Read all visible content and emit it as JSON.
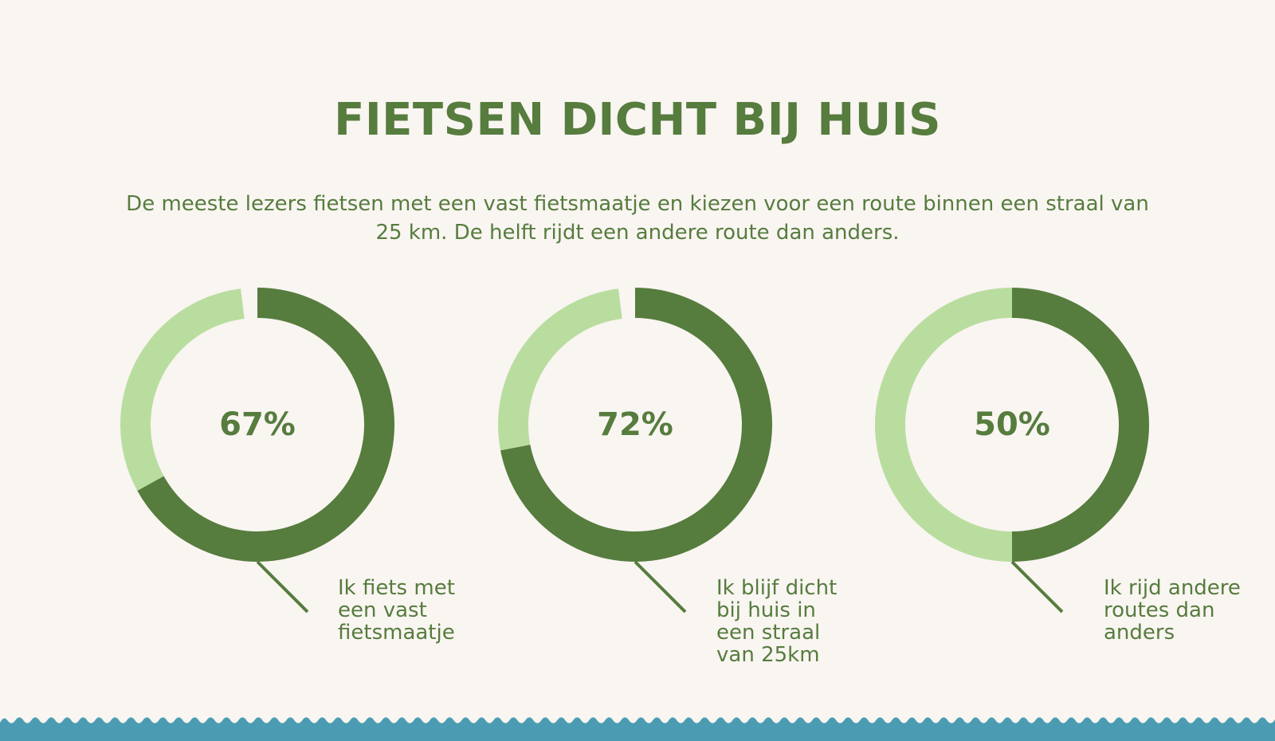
{
  "title": "FIETSEN DICHT BIJ HUIS",
  "subtitle": "De meeste lezers fietsen met een vast fietsmaatje en kiezen voor een route binnen een straal van 25 km. De helft rijdt een andere route dan anders.",
  "colors": {
    "primary": "#567c3e",
    "secondary": "#b9dd9f",
    "background": "#f9f5f1",
    "wave": "#4b9cb3"
  },
  "chart_data": [
    {
      "type": "pie",
      "value": 67,
      "remainder": 33,
      "label_pct": "67%",
      "caption": "Ik fiets met een vast fietsmaatje"
    },
    {
      "type": "pie",
      "value": 72,
      "remainder": 28,
      "label_pct": "72%",
      "caption": "Ik blijf dicht bij huis in een straal van 25km"
    },
    {
      "type": "pie",
      "value": 50,
      "remainder": 50,
      "label_pct": "50%",
      "caption": "Ik rijd andere routes dan anders"
    }
  ]
}
